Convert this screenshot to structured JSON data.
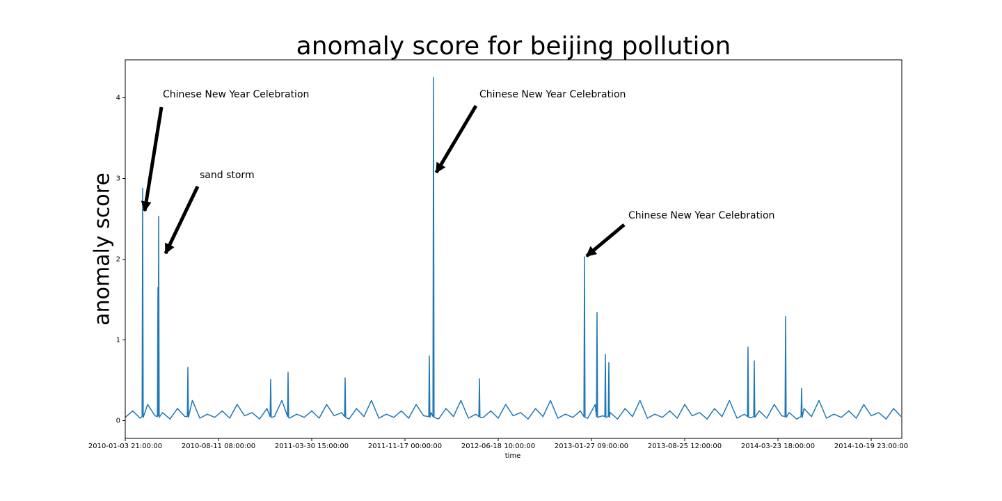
{
  "chart_data": {
    "type": "line",
    "title": "anomaly score for beijing pollution",
    "xlabel": "time",
    "ylabel": "anomaly score",
    "x": [
      0,
      400,
      800,
      903,
      933,
      963,
      1200,
      1600,
      1724,
      1754,
      1772,
      1791,
      1821,
      2000,
      2400,
      2800,
      3200,
      3328,
      3358,
      3388,
      3600,
      4000,
      4400,
      4800,
      5200,
      5600,
      6000,
      6400,
      6800,
      7200,
      7600,
      7768,
      7798,
      7828,
      8000,
      8400,
      8701,
      8731,
      8761,
      8800,
      9200,
      9600,
      10000,
      10400,
      10800,
      11200,
      11600,
      11760,
      11790,
      11820,
      12000,
      12400,
      12800,
      13200,
      13600,
      14000,
      14400,
      14800,
      15200,
      15600,
      16000,
      16275,
      16305,
      16335,
      16400,
      16499,
      16529,
      16559,
      16800,
      17200,
      17600,
      18000,
      18400,
      18800,
      18961,
      18991,
      19021,
      19200,
      19600,
      20000,
      20400,
      20800,
      21200,
      21600,
      22000,
      22400,
      22800,
      23200,
      23600,
      24000,
      24400,
      24595,
      24625,
      24655,
      24800,
      25200,
      25267,
      25297,
      25327,
      25600,
      25715,
      25745,
      25775,
      25901,
      25931,
      25961,
      26000,
      26400,
      26800,
      27200,
      27600,
      28000,
      28400,
      28800,
      29200,
      29600,
      30000,
      30400,
      30800,
      31200,
      31600,
      32000,
      32400,
      32800,
      33200,
      33364,
      33394,
      33424,
      33600,
      33700,
      33730,
      33760,
      34000,
      34400,
      34800,
      35200,
      35379,
      35409,
      35439,
      35600,
      36000,
      36237,
      36267,
      36297,
      36400,
      36800,
      37200,
      37600,
      38000,
      38400,
      38800,
      39200,
      39600,
      40000,
      40400,
      40800,
      41200,
      41600
    ],
    "series": [
      {
        "name": "anomaly score",
        "color": "#1f77b4",
        "values": [
          0.04,
          0.12,
          0.03,
          0.05,
          2.88,
          0.04,
          0.2,
          0.06,
          0.05,
          1.65,
          0.06,
          2.53,
          0.04,
          0.1,
          0.02,
          0.15,
          0.05,
          0.05,
          0.66,
          0.04,
          0.25,
          0.03,
          0.08,
          0.04,
          0.12,
          0.03,
          0.2,
          0.06,
          0.1,
          0.02,
          0.15,
          0.05,
          0.51,
          0.04,
          0.05,
          0.25,
          0.05,
          0.6,
          0.04,
          0.03,
          0.08,
          0.04,
          0.12,
          0.03,
          0.2,
          0.06,
          0.1,
          0.05,
          0.53,
          0.04,
          0.02,
          0.15,
          0.05,
          0.25,
          0.03,
          0.08,
          0.04,
          0.12,
          0.03,
          0.2,
          0.06,
          0.05,
          0.8,
          0.04,
          0.1,
          0.05,
          4.25,
          0.04,
          0.02,
          0.15,
          0.05,
          0.25,
          0.03,
          0.08,
          0.05,
          0.52,
          0.04,
          0.04,
          0.12,
          0.03,
          0.2,
          0.06,
          0.1,
          0.02,
          0.15,
          0.05,
          0.25,
          0.03,
          0.08,
          0.04,
          0.12,
          0.05,
          2.03,
          0.04,
          0.03,
          0.2,
          0.05,
          1.34,
          0.04,
          0.06,
          0.05,
          0.82,
          0.04,
          0.05,
          0.72,
          0.04,
          0.1,
          0.02,
          0.15,
          0.05,
          0.25,
          0.03,
          0.08,
          0.04,
          0.12,
          0.03,
          0.2,
          0.06,
          0.1,
          0.02,
          0.15,
          0.05,
          0.25,
          0.03,
          0.08,
          0.05,
          0.91,
          0.04,
          0.04,
          0.05,
          0.74,
          0.04,
          0.12,
          0.03,
          0.2,
          0.06,
          0.05,
          1.29,
          0.04,
          0.1,
          0.02,
          0.05,
          0.4,
          0.04,
          0.15,
          0.05,
          0.25,
          0.03,
          0.08,
          0.04,
          0.12,
          0.03,
          0.2,
          0.06,
          0.1,
          0.02,
          0.15,
          0.05
        ]
      }
    ],
    "xlim": [
      0,
      41640
    ],
    "xticks": [
      {
        "value": 0,
        "label": "2010-01-03 21:00:00"
      },
      {
        "value": 5000,
        "label": "2010-08-11 08:00:00"
      },
      {
        "value": 10000,
        "label": "2011-03-30 15:00:00"
      },
      {
        "value": 15000,
        "label": "2011-11-17 00:00:00"
      },
      {
        "value": 20000,
        "label": "2012-06-18 10:00:00"
      },
      {
        "value": 25000,
        "label": "2013-01-27 09:00:00"
      },
      {
        "value": 30000,
        "label": "2013-08-25 12:00:00"
      },
      {
        "value": 35000,
        "label": "2014-03-23 18:00:00"
      },
      {
        "value": 40000,
        "label": "2014-10-19 23:00:00"
      }
    ],
    "ylim": [
      -0.22,
      4.47
    ],
    "yticks": [
      0,
      1,
      2,
      3,
      4
    ],
    "annotations": [
      {
        "text": "Chinese New Year Celebration"
      },
      {
        "text": "sand storm"
      },
      {
        "text": "Chinese New Year Celebration"
      },
      {
        "text": "Chinese New Year Celebration"
      }
    ]
  }
}
